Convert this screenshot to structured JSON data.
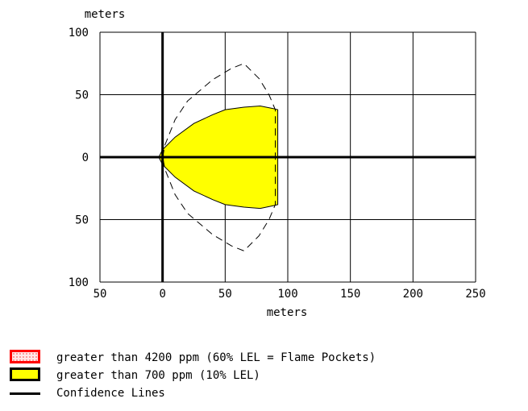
{
  "chart_data": {
    "type": "area",
    "xlabel": "meters",
    "ylabel": "meters",
    "xlim": [
      -50,
      250
    ],
    "ylim": [
      -100,
      100
    ],
    "x_ticks": [
      -50,
      0,
      50,
      100,
      150,
      200,
      250
    ],
    "x_tick_labels": [
      "50",
      "0",
      "50",
      "100",
      "150",
      "200",
      "250"
    ],
    "y_ticks": [
      100,
      50,
      0,
      -50,
      -100
    ],
    "y_tick_labels": [
      "100",
      "50",
      "0",
      "50",
      "100"
    ],
    "grid": true,
    "series": [
      {
        "name": "greater than 700 ppm (10% LEL)",
        "kind": "filled-region",
        "color": "#ffff00",
        "outline": [
          {
            "x": -3,
            "y": 0
          },
          {
            "x": 0,
            "y": 6
          },
          {
            "x": 10,
            "y": 16
          },
          {
            "x": 25,
            "y": 27
          },
          {
            "x": 40,
            "y": 34
          },
          {
            "x": 50,
            "y": 38
          },
          {
            "x": 65,
            "y": 40
          },
          {
            "x": 78,
            "y": 41
          },
          {
            "x": 88,
            "y": 39
          },
          {
            "x": 92,
            "y": 38
          },
          {
            "x": 92,
            "y": -38
          },
          {
            "x": 88,
            "y": -39
          },
          {
            "x": 78,
            "y": -41
          },
          {
            "x": 65,
            "y": -40
          },
          {
            "x": 50,
            "y": -38
          },
          {
            "x": 40,
            "y": -34
          },
          {
            "x": 25,
            "y": -27
          },
          {
            "x": 10,
            "y": -16
          },
          {
            "x": 0,
            "y": -6
          }
        ]
      },
      {
        "name": "Confidence Lines",
        "kind": "dashed-outline",
        "color": "#000000",
        "points": [
          {
            "x": 0,
            "y": 0
          },
          {
            "x": 2,
            "y": 10
          },
          {
            "x": 10,
            "y": 30
          },
          {
            "x": 20,
            "y": 45
          },
          {
            "x": 40,
            "y": 62
          },
          {
            "x": 55,
            "y": 71
          },
          {
            "x": 65,
            "y": 75
          },
          {
            "x": 77,
            "y": 63
          },
          {
            "x": 85,
            "y": 50
          },
          {
            "x": 90,
            "y": 38
          },
          {
            "x": 90,
            "y": -38
          },
          {
            "x": 85,
            "y": -50
          },
          {
            "x": 77,
            "y": -63
          },
          {
            "x": 65,
            "y": -75
          },
          {
            "x": 55,
            "y": -71
          },
          {
            "x": 40,
            "y": -62
          },
          {
            "x": 20,
            "y": -45
          },
          {
            "x": 10,
            "y": -30
          },
          {
            "x": 2,
            "y": -10
          },
          {
            "x": 0,
            "y": 0
          }
        ]
      }
    ]
  },
  "legend": [
    {
      "label": "greater than 4200 ppm (60% LEL = Flame Pockets)",
      "swatch": "red-dotted-box"
    },
    {
      "label": "greater than 700 ppm (10% LEL)",
      "swatch": "yellow-box"
    },
    {
      "label": "Confidence Lines",
      "swatch": "black-line"
    }
  ]
}
